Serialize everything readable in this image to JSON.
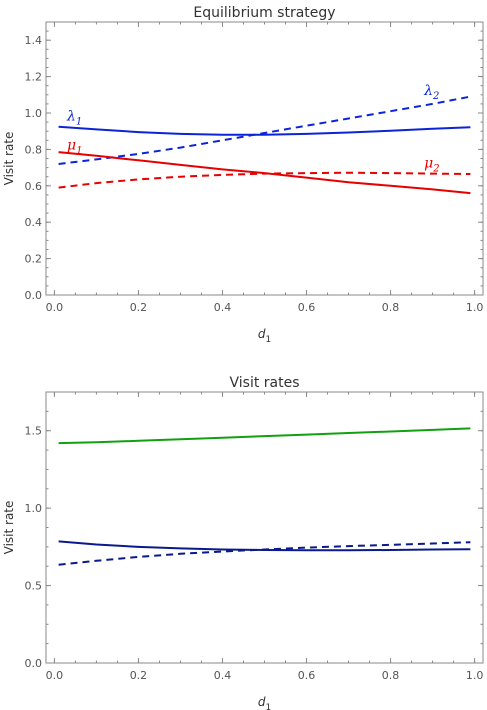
{
  "chart_data": [
    {
      "type": "line",
      "title": "Equilibrium strategy",
      "xlabel_main": "d",
      "xlabel_sub": "1",
      "ylabel": "Visit rate",
      "xlim": [
        -0.02,
        1.02
      ],
      "ylim": [
        0,
        1.5
      ],
      "xticks": [
        "0.0",
        "0.2",
        "0.4",
        "0.6",
        "0.8",
        "1.0"
      ],
      "yticks": [
        "0.0",
        "0.2",
        "0.4",
        "0.6",
        "0.8",
        "1.0",
        "1.2",
        "1.4"
      ],
      "series": [
        {
          "label_main": "λ",
          "label_sub": "1",
          "color": "#0b24d8",
          "style": "solid",
          "label_x": 0.03,
          "label_y": 0.96,
          "x": [
            0.01,
            0.1,
            0.2,
            0.3,
            0.4,
            0.5,
            0.6,
            0.7,
            0.8,
            0.9,
            0.99
          ],
          "y": [
            0.925,
            0.91,
            0.895,
            0.885,
            0.88,
            0.88,
            0.885,
            0.893,
            0.903,
            0.913,
            0.922
          ]
        },
        {
          "label_main": "λ",
          "label_sub": "2",
          "color": "#0b24d8",
          "style": "dashed",
          "label_x": 0.88,
          "label_y": 1.1,
          "x": [
            0.01,
            0.1,
            0.2,
            0.3,
            0.4,
            0.5,
            0.6,
            0.7,
            0.8,
            0.9,
            0.99
          ],
          "y": [
            0.72,
            0.745,
            0.775,
            0.81,
            0.85,
            0.89,
            0.93,
            0.97,
            1.01,
            1.05,
            1.09
          ]
        },
        {
          "label_main": "μ",
          "label_sub": "1",
          "color": "#e60000",
          "style": "solid",
          "label_x": 0.03,
          "label_y": 0.8,
          "x": [
            0.01,
            0.1,
            0.2,
            0.3,
            0.4,
            0.5,
            0.6,
            0.7,
            0.8,
            0.9,
            0.99
          ],
          "y": [
            0.785,
            0.765,
            0.74,
            0.715,
            0.69,
            0.67,
            0.645,
            0.62,
            0.6,
            0.58,
            0.56
          ]
        },
        {
          "label_main": "μ",
          "label_sub": "2",
          "color": "#e60000",
          "style": "dashed",
          "label_x": 0.88,
          "label_y": 0.7,
          "x": [
            0.01,
            0.1,
            0.2,
            0.3,
            0.4,
            0.5,
            0.6,
            0.7,
            0.8,
            0.9,
            0.99
          ],
          "y": [
            0.59,
            0.615,
            0.635,
            0.65,
            0.66,
            0.667,
            0.67,
            0.672,
            0.67,
            0.667,
            0.665
          ]
        }
      ]
    },
    {
      "type": "line",
      "title": "Visit rates",
      "xlabel_main": "d",
      "xlabel_sub": "1",
      "ylabel": "Visit rate",
      "xlim": [
        -0.02,
        1.02
      ],
      "ylim": [
        0,
        1.75
      ],
      "xticks": [
        "0.0",
        "0.2",
        "0.4",
        "0.6",
        "0.8",
        "1.0"
      ],
      "yticks": [
        "0.0",
        "0.5",
        "1.0",
        "1.5"
      ],
      "series": [
        {
          "color": "#12a012",
          "style": "solid",
          "x": [
            0.01,
            0.1,
            0.2,
            0.3,
            0.4,
            0.5,
            0.6,
            0.7,
            0.8,
            0.9,
            0.99
          ],
          "y": [
            1.42,
            1.425,
            1.435,
            1.445,
            1.455,
            1.465,
            1.475,
            1.485,
            1.495,
            1.505,
            1.515
          ]
        },
        {
          "color": "#0a1a8c",
          "style": "solid",
          "x": [
            0.01,
            0.1,
            0.2,
            0.3,
            0.4,
            0.5,
            0.6,
            0.7,
            0.8,
            0.9,
            0.99
          ],
          "y": [
            0.785,
            0.765,
            0.75,
            0.74,
            0.733,
            0.73,
            0.728,
            0.728,
            0.73,
            0.733,
            0.735
          ]
        },
        {
          "color": "#0a1a8c",
          "style": "dashed",
          "x": [
            0.01,
            0.1,
            0.2,
            0.3,
            0.4,
            0.5,
            0.6,
            0.7,
            0.8,
            0.9,
            0.99
          ],
          "y": [
            0.635,
            0.66,
            0.685,
            0.705,
            0.72,
            0.733,
            0.745,
            0.755,
            0.763,
            0.772,
            0.78
          ]
        }
      ]
    }
  ]
}
